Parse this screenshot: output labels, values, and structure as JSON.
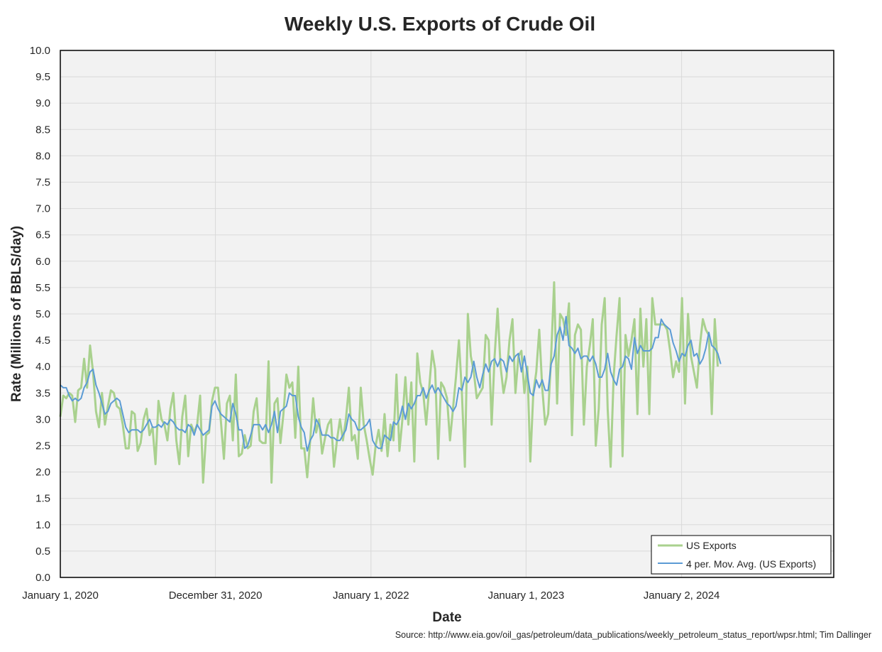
{
  "chart_data": {
    "type": "line",
    "title": "Weekly U.S. Exports of Crude Oil",
    "xlabel": "Date",
    "ylabel": "Rate (Millions of BBLS/day)",
    "source": "Source: http://www.eia.gov/oil_gas/petroleum/data_publications/weekly_petroleum_status_report/wpsr.html; Tim Dallinger",
    "x_start": "2020-01-01",
    "x_step_days": 7,
    "xlim": [
      "2020-01-01",
      "2024-12-25"
    ],
    "x_tick_labels": [
      {
        "date": "2020-01-01",
        "label": "January 1, 2020"
      },
      {
        "date": "2020-12-31",
        "label": "December 31, 2020"
      },
      {
        "date": "2022-01-01",
        "label": "January 1, 2022"
      },
      {
        "date": "2023-01-01",
        "label": "January 1, 2023"
      },
      {
        "date": "2024-01-02",
        "label": "January 2, 2024"
      }
    ],
    "ylim": [
      0,
      10
    ],
    "y_ticks": [
      "0.0",
      "0.5",
      "1.0",
      "1.5",
      "2.0",
      "2.5",
      "3.0",
      "3.5",
      "4.0",
      "4.5",
      "5.0",
      "5.5",
      "6.0",
      "6.5",
      "7.0",
      "7.5",
      "8.0",
      "8.5",
      "9.0",
      "9.5",
      "10.0"
    ],
    "grid": true,
    "legend_position": "bottom-right",
    "colors": {
      "us_exports": "#a9d18e",
      "moving_avg": "#5b9bd5",
      "plot_background": "#f2f2f2",
      "gridline": "#d9d9d9"
    },
    "series": [
      {
        "name": "US Exports",
        "values": [
          3.05,
          3.45,
          3.4,
          3.5,
          3.45,
          2.95,
          3.55,
          3.6,
          4.15,
          3.6,
          4.4,
          3.9,
          3.15,
          2.85,
          3.5,
          2.9,
          3.25,
          3.55,
          3.5,
          3.25,
          3.2,
          2.9,
          2.45,
          2.45,
          3.15,
          3.1,
          2.4,
          2.55,
          3.0,
          3.2,
          2.7,
          2.85,
          2.15,
          3.35,
          3.0,
          2.9,
          2.6,
          3.2,
          3.5,
          2.6,
          2.15,
          3.05,
          3.45,
          2.3,
          2.9,
          2.75,
          2.9,
          3.45,
          1.8,
          2.7,
          2.75,
          3.35,
          3.6,
          3.6,
          2.95,
          2.25,
          3.3,
          3.45,
          2.6,
          3.85,
          2.3,
          2.35,
          2.7,
          2.45,
          2.5,
          3.15,
          3.4,
          2.6,
          2.55,
          2.55,
          4.1,
          1.8,
          3.3,
          3.4,
          2.55,
          3.1,
          3.85,
          3.6,
          3.7,
          2.65,
          4.0,
          2.45,
          2.45,
          1.9,
          2.6,
          3.4,
          2.75,
          3.0,
          2.35,
          2.65,
          2.9,
          3.0,
          2.1,
          2.6,
          3.0,
          2.6,
          3.0,
          3.6,
          2.6,
          2.7,
          2.25,
          3.6,
          2.9,
          2.6,
          2.25,
          1.95,
          2.5,
          2.8,
          2.4,
          3.1,
          2.3,
          2.9,
          2.6,
          3.85,
          2.4,
          3.0,
          3.8,
          2.9,
          3.7,
          2.2,
          4.25,
          3.7,
          3.5,
          2.9,
          3.6,
          4.3,
          3.95,
          2.25,
          3.7,
          3.6,
          3.4,
          2.6,
          3.2,
          3.8,
          4.5,
          3.5,
          2.1,
          5.0,
          4.2,
          3.9,
          3.4,
          3.5,
          3.6,
          4.6,
          4.5,
          2.9,
          4.2,
          5.1,
          4.0,
          3.5,
          3.8,
          4.5,
          4.9,
          3.5,
          4.2,
          4.3,
          3.5,
          4.0,
          2.2,
          3.5,
          3.9,
          4.7,
          3.6,
          2.9,
          3.1,
          4.2,
          5.6,
          3.3,
          5.0,
          4.9,
          4.6,
          5.2,
          2.7,
          4.6,
          4.8,
          4.7,
          2.9,
          4.0,
          4.4,
          4.9,
          2.5,
          3.2,
          4.8,
          5.3,
          3.2,
          2.1,
          3.8,
          4.6,
          5.3,
          2.3,
          4.6,
          4.2,
          4.5,
          4.9,
          3.1,
          5.1,
          4.0,
          4.9,
          3.1,
          5.3,
          4.8,
          4.8,
          4.8,
          4.8,
          4.7,
          4.3,
          3.8,
          4.1,
          3.9,
          5.3,
          3.3,
          5.0,
          4.2,
          3.9,
          3.6,
          4.4,
          4.9,
          4.7,
          4.6,
          3.1,
          4.9,
          4.0
        ]
      },
      {
        "name": "4 per. Mov. Avg. (US Exports)",
        "values": [
          3.65,
          3.6,
          3.6,
          3.45,
          3.35,
          3.4,
          3.35,
          3.4,
          3.6,
          3.7,
          3.9,
          3.95,
          3.65,
          3.5,
          3.3,
          3.1,
          3.15,
          3.3,
          3.35,
          3.4,
          3.35,
          3.1,
          2.85,
          2.75,
          2.8,
          2.8,
          2.8,
          2.75,
          2.8,
          2.9,
          3.0,
          2.85,
          2.85,
          2.9,
          2.85,
          2.95,
          2.9,
          3.0,
          2.95,
          2.85,
          2.8,
          2.8,
          2.75,
          2.9,
          2.85,
          2.7,
          2.9,
          2.8,
          2.7,
          2.75,
          2.8,
          3.25,
          3.35,
          3.2,
          3.1,
          3.05,
          3.0,
          2.95,
          3.3,
          3.1,
          2.8,
          2.8,
          2.45,
          2.5,
          2.7,
          2.9,
          2.9,
          2.9,
          2.8,
          2.9,
          2.75,
          2.9,
          3.15,
          2.75,
          3.15,
          3.2,
          3.25,
          3.5,
          3.45,
          3.45,
          3.05,
          2.85,
          2.75,
          2.4,
          2.6,
          2.7,
          3.0,
          2.9,
          2.7,
          2.7,
          2.7,
          2.65,
          2.65,
          2.6,
          2.6,
          2.7,
          2.8,
          3.1,
          3.0,
          2.95,
          2.8,
          2.8,
          2.85,
          2.9,
          3.0,
          2.6,
          2.5,
          2.45,
          2.45,
          2.7,
          2.65,
          2.6,
          2.95,
          2.9,
          3.0,
          3.25,
          3.0,
          3.3,
          3.2,
          3.3,
          3.45,
          3.45,
          3.6,
          3.4,
          3.55,
          3.65,
          3.5,
          3.6,
          3.5,
          3.4,
          3.3,
          3.25,
          3.15,
          3.25,
          3.6,
          3.55,
          3.8,
          3.7,
          3.8,
          4.1,
          3.8,
          3.6,
          3.85,
          4.05,
          3.9,
          4.1,
          4.15,
          4.0,
          4.15,
          4.1,
          3.9,
          4.2,
          4.1,
          4.2,
          4.25,
          3.9,
          4.2,
          3.85,
          3.5,
          3.45,
          3.75,
          3.6,
          3.75,
          3.55,
          3.55,
          4.05,
          4.2,
          4.6,
          4.75,
          4.5,
          4.95,
          4.4,
          4.35,
          4.25,
          4.35,
          4.15,
          4.2,
          4.2,
          4.1,
          4.2,
          4.05,
          3.8,
          3.8,
          3.95,
          4.25,
          3.9,
          3.75,
          3.65,
          3.95,
          4.0,
          4.2,
          4.15,
          3.95,
          4.55,
          4.25,
          4.4,
          4.3,
          4.3,
          4.3,
          4.35,
          4.55,
          4.55,
          4.9,
          4.8,
          4.75,
          4.7,
          4.45,
          4.3,
          4.1,
          4.25,
          4.2,
          4.4,
          4.5,
          4.2,
          4.25,
          4.05,
          4.15,
          4.35,
          4.65,
          4.4,
          4.35,
          4.25,
          4.05
        ]
      }
    ]
  }
}
